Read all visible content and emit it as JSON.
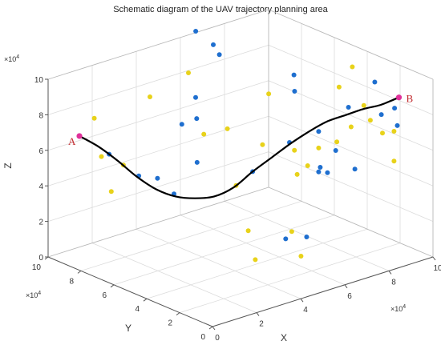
{
  "chart_data": {
    "type": "scatter3d",
    "title": "Schematic diagram of the  UAV trajectory planning area",
    "xlabel": "X",
    "ylabel": "Y",
    "zlabel": "Z",
    "xlim": [
      0,
      10
    ],
    "ylim": [
      0,
      10
    ],
    "zlim": [
      0,
      10
    ],
    "tick_multiplier": {
      "base": "×10",
      "exponent": "4"
    },
    "xticks": [
      "0",
      "2",
      "4",
      "6",
      "8",
      "10"
    ],
    "yticks": [
      "0",
      "2",
      "4",
      "6",
      "8",
      "10"
    ],
    "zticks": [
      "0",
      "2",
      "4",
      "6",
      "8",
      "10"
    ],
    "grid": true,
    "colors": {
      "blue": "#1f6fcf",
      "yellow": "#e8d21a",
      "path": "#000000",
      "endpoint": "#e0309a",
      "label": "#c0282c"
    },
    "start": {
      "label": "A",
      "x": 0.6,
      "y": 8.9,
      "z": 7.0
    },
    "end": {
      "label": "B",
      "x": 9.2,
      "y": 1.0,
      "z": 8.9
    },
    "trajectory": [
      {
        "x": 0.6,
        "y": 8.9,
        "z": 7.0
      },
      {
        "x": 1.1,
        "y": 8.4,
        "z": 6.4
      },
      {
        "x": 1.6,
        "y": 7.9,
        "z": 5.6
      },
      {
        "x": 2.1,
        "y": 7.4,
        "z": 4.7
      },
      {
        "x": 2.6,
        "y": 6.9,
        "z": 4.0
      },
      {
        "x": 3.1,
        "y": 6.4,
        "z": 3.6
      },
      {
        "x": 3.6,
        "y": 5.9,
        "z": 3.5
      },
      {
        "x": 4.1,
        "y": 5.4,
        "z": 3.6
      },
      {
        "x": 4.6,
        "y": 4.9,
        "z": 4.1
      },
      {
        "x": 5.1,
        "y": 4.4,
        "z": 5.0
      },
      {
        "x": 5.6,
        "y": 3.9,
        "z": 5.8
      },
      {
        "x": 6.1,
        "y": 3.4,
        "z": 6.6
      },
      {
        "x": 6.6,
        "y": 2.9,
        "z": 7.3
      },
      {
        "x": 7.1,
        "y": 2.5,
        "z": 7.8
      },
      {
        "x": 7.6,
        "y": 2.1,
        "z": 8.1
      },
      {
        "x": 8.1,
        "y": 1.7,
        "z": 8.4
      },
      {
        "x": 8.6,
        "y": 1.3,
        "z": 8.6
      },
      {
        "x": 9.2,
        "y": 1.0,
        "z": 8.9
      }
    ],
    "series": [
      {
        "color": "blue",
        "points": [
          {
            "x": 1.35,
            "y": 8.1,
            "z": 6.0
          },
          {
            "x": 2.1,
            "y": 7.3,
            "z": 4.8
          },
          {
            "x": 2.65,
            "y": 6.9,
            "z": 4.6
          },
          {
            "x": 3.1,
            "y": 6.5,
            "z": 3.7
          },
          {
            "x": 4.0,
            "y": 6.3,
            "z": 5.2
          },
          {
            "x": 4.2,
            "y": 7.5,
            "z": 6.8
          },
          {
            "x": 4.5,
            "y": 7.0,
            "z": 7.2
          },
          {
            "x": 4.9,
            "y": 7.6,
            "z": 8.0
          },
          {
            "x": 5.8,
            "y": 8.8,
            "z": 10.9
          },
          {
            "x": 6.3,
            "y": 8.4,
            "z": 10.1
          },
          {
            "x": 6.5,
            "y": 8.3,
            "z": 9.5
          },
          {
            "x": 5.1,
            "y": 4.4,
            "z": 5.0
          },
          {
            "x": 6.1,
            "y": 3.5,
            "z": 6.6
          },
          {
            "x": 7.2,
            "y": 4.7,
            "z": 9.5
          },
          {
            "x": 7.3,
            "y": 4.8,
            "z": 8.5
          },
          {
            "x": 7.2,
            "y": 3.2,
            "z": 6.9
          },
          {
            "x": 6.9,
            "y": 2.7,
            "z": 5.2
          },
          {
            "x": 6.9,
            "y": 2.8,
            "z": 4.9
          },
          {
            "x": 7.3,
            "y": 2.8,
            "z": 4.7
          },
          {
            "x": 7.9,
            "y": 3.1,
            "z": 5.6
          },
          {
            "x": 7.8,
            "y": 1.8,
            "z": 5.1
          },
          {
            "x": 8.7,
            "y": 3.4,
            "z": 7.6
          },
          {
            "x": 9.0,
            "y": 1.8,
            "z": 7.7
          },
          {
            "x": 9.3,
            "y": 2.6,
            "z": 9.1
          },
          {
            "x": 9.3,
            "y": 1.4,
            "z": 8.1
          },
          {
            "x": 9.5,
            "y": 1.5,
            "z": 7.0
          },
          {
            "x": 6.3,
            "y": 4.0,
            "z": 0.9
          },
          {
            "x": 7.4,
            "y": 4.2,
            "z": 0.5
          }
        ]
      },
      {
        "color": "yellow",
        "points": [
          {
            "x": 1.2,
            "y": 8.8,
            "z": 7.8
          },
          {
            "x": 1.0,
            "y": 8.1,
            "z": 6.0
          },
          {
            "x": 1.7,
            "y": 7.7,
            "z": 5.4
          },
          {
            "x": 1.3,
            "y": 7.9,
            "z": 4.0
          },
          {
            "x": 3.2,
            "y": 8.1,
            "z": 8.5
          },
          {
            "x": 4.8,
            "y": 7.9,
            "z": 9.3
          },
          {
            "x": 4.6,
            "y": 6.7,
            "z": 6.4
          },
          {
            "x": 4.8,
            "y": 5.0,
            "z": 4.1
          },
          {
            "x": 5.0,
            "y": 5.8,
            "z": 6.9
          },
          {
            "x": 5.7,
            "y": 4.6,
            "z": 6.2
          },
          {
            "x": 6.8,
            "y": 5.7,
            "z": 8.2
          },
          {
            "x": 6.4,
            "y": 3.6,
            "z": 6.0
          },
          {
            "x": 6.3,
            "y": 3.3,
            "z": 4.8
          },
          {
            "x": 7.0,
            "y": 3.6,
            "z": 4.9
          },
          {
            "x": 7.5,
            "y": 3.6,
            "z": 5.7
          },
          {
            "x": 7.8,
            "y": 2.9,
            "z": 6.2
          },
          {
            "x": 8.0,
            "y": 2.3,
            "z": 7.2
          },
          {
            "x": 8.5,
            "y": 3.7,
            "z": 8.7
          },
          {
            "x": 8.8,
            "y": 2.2,
            "z": 7.3
          },
          {
            "x": 9.1,
            "y": 3.7,
            "z": 9.6
          },
          {
            "x": 9.1,
            "y": 3.0,
            "z": 7.7
          },
          {
            "x": 9.2,
            "y": 2.0,
            "z": 6.5
          },
          {
            "x": 9.5,
            "y": 1.7,
            "z": 6.6
          },
          {
            "x": 9.2,
            "y": 1.3,
            "z": 5.2
          },
          {
            "x": 5.5,
            "y": 5.2,
            "z": 1.2
          },
          {
            "x": 6.8,
            "y": 4.3,
            "z": 1.0
          },
          {
            "x": 5.0,
            "y": 4.1,
            "z": 0.2
          },
          {
            "x": 6.4,
            "y": 3.2,
            "z": 0.2
          }
        ]
      }
    ]
  }
}
